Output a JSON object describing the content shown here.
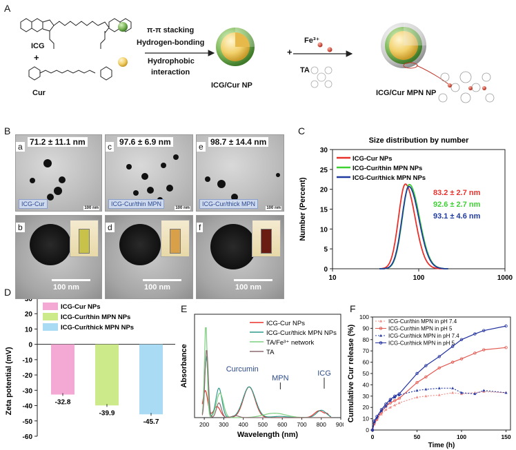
{
  "panels": {
    "A": "A",
    "B": "B",
    "C": "C",
    "D": "D",
    "E": "E",
    "F": "F"
  },
  "scheme": {
    "icg_label": "ICG",
    "cur_label": "Cur",
    "plus": "+",
    "interaction_lines": [
      "π-π stacking",
      "Hydrogen-bonding",
      "Hydrophobic",
      "interaction"
    ],
    "icg_cur_np": "ICG/Cur NP",
    "fe_label": "Fe³⁺",
    "ta_label": "TA",
    "mpn_np": "ICG/Cur MPN NP",
    "colors": {
      "icg_sphere": "#7fb85a",
      "cur_sphere": "#f2d06b",
      "fe": "#c0392b"
    }
  },
  "tem": {
    "top": [
      {
        "letter": "a",
        "size": "71.2 ± 11.1 nm",
        "tag": "ICG-Cur",
        "scale": "100 nm"
      },
      {
        "letter": "c",
        "size": "97.6 ± 6.9 nm",
        "tag": "ICG-Cur/thin MPN",
        "scale": "100 nm"
      },
      {
        "letter": "e",
        "size": "98.7 ± 14.4 nm",
        "tag": "ICG-Cur/thick MPN",
        "scale": "100 nm"
      }
    ],
    "bottom": [
      {
        "letter": "b",
        "scale": "100 nm",
        "vial": "#c9c24a"
      },
      {
        "letter": "d",
        "scale": "100 nm",
        "vial": "#d8a048"
      },
      {
        "letter": "f",
        "scale": "100 nm",
        "vial": "#6a1c12"
      }
    ]
  },
  "chart_data": [
    {
      "id": "C",
      "type": "line",
      "title": "Size distribution by number",
      "xlabel": "Size (d.nm)",
      "ylabel": "Number (Percent)",
      "xscale": "log",
      "xlim": [
        10,
        1000
      ],
      "ylim": [
        0,
        30
      ],
      "xticks": [
        10,
        100,
        1000
      ],
      "yticks": [
        0,
        5,
        10,
        15,
        20,
        25,
        30
      ],
      "series": [
        {
          "name": "ICG-Cur NPs",
          "color": "#e8302a",
          "peak": 70,
          "peak_value": 21.3,
          "width": 0.145,
          "annotation": "83.2 ± 2.7 nm"
        },
        {
          "name": "ICG-Cur/thin MPN NPs",
          "color": "#3dd133",
          "peak": 78,
          "peak_value": 21.2,
          "width": 0.15,
          "annotation": "92.6 ± 2.7 nm"
        },
        {
          "name": "ICG-Cur/thick MPN NPs",
          "color": "#1f3a9e",
          "peak": 77,
          "peak_value": 20.7,
          "width": 0.15,
          "annotation": "93.1 ± 4.6 nm"
        }
      ]
    },
    {
      "id": "D",
      "type": "bar",
      "xlabel": "",
      "ylabel": "Zeta potential (mV)",
      "ylim": [
        -60,
        30
      ],
      "yticks": [
        30,
        20,
        10,
        0,
        -10,
        -20,
        -30,
        -40,
        -50,
        -60
      ],
      "categories": [
        "ICG-Cur NPs",
        "ICG-Cur/thin MPN NPs",
        "ICG-Cur/thick MPN NPs"
      ],
      "values": [
        -32.8,
        -39.9,
        -45.7
      ],
      "labels": [
        "-32.8",
        "-39.9",
        "-45.7"
      ],
      "colors": [
        "#f4a9d4",
        "#cdea8a",
        "#a9dcf4"
      ]
    },
    {
      "id": "E",
      "type": "line",
      "xlabel": "Wavelength (nm)",
      "ylabel": "Absorbance",
      "xlim": [
        150,
        900
      ],
      "xticks": [
        200,
        300,
        400,
        500,
        600,
        700,
        800,
        900
      ],
      "series": [
        {
          "name": "ICG-Cur NPs",
          "color": "#e8302a"
        },
        {
          "name": "ICG-Cur/thick MPN NPs",
          "color": "#2f9a8a"
        },
        {
          "name": "TA/Fe³⁺ network",
          "color": "#7ccf7e"
        },
        {
          "name": "TA",
          "color": "#8a6a70"
        }
      ],
      "annotations": [
        "Curcumin",
        "MPN",
        "ICG"
      ]
    },
    {
      "id": "F",
      "type": "line",
      "xlabel": "Time (h)",
      "ylabel": "Cumulative Cur release (%)",
      "xlim": [
        0,
        155
      ],
      "ylim": [
        0,
        100
      ],
      "xticks": [
        0,
        50,
        100,
        150
      ],
      "yticks": [
        0,
        10,
        20,
        30,
        40,
        50,
        60,
        70,
        80,
        90,
        100
      ],
      "series": [
        {
          "name": "ICG-Cur/thin MPN in pH 7.4",
          "color": "#f0908a",
          "dash": true,
          "marker": "triangle",
          "x": [
            0,
            2,
            5,
            10,
            15,
            20,
            25,
            30,
            50,
            60,
            75,
            90,
            100,
            115,
            125,
            150
          ],
          "y": [
            0,
            5,
            9,
            14,
            18,
            20,
            22,
            24,
            29,
            30,
            31,
            33,
            32,
            33,
            34,
            33
          ]
        },
        {
          "name": "ICG-Cur/thin MPN in pH 5",
          "color": "#e35a52",
          "dash": false,
          "marker": "circle",
          "x": [
            0,
            2,
            5,
            10,
            15,
            20,
            25,
            30,
            50,
            60,
            75,
            90,
            100,
            115,
            125,
            150
          ],
          "y": [
            0,
            6,
            10,
            16,
            21,
            24,
            26,
            28,
            42,
            47,
            55,
            60,
            63,
            68,
            71,
            73
          ]
        },
        {
          "name": "ICG-Cur/thick MPN in pH 7.4",
          "color": "#2a3fa6",
          "dash": true,
          "marker": "triangle",
          "x": [
            0,
            2,
            5,
            10,
            15,
            20,
            25,
            30,
            50,
            60,
            75,
            90,
            100,
            115,
            125,
            150
          ],
          "y": [
            0,
            7,
            11,
            17,
            21,
            26,
            29,
            31,
            35,
            36,
            37,
            37,
            33,
            32,
            35,
            33
          ]
        },
        {
          "name": "ICG-Cur/thick MPN in pH 5",
          "color": "#1f2f9e",
          "dash": false,
          "marker": "circle",
          "x": [
            0,
            2,
            5,
            10,
            15,
            20,
            25,
            30,
            50,
            60,
            75,
            90,
            100,
            115,
            125,
            150
          ],
          "y": [
            0,
            8,
            12,
            18,
            23,
            27,
            30,
            32,
            50,
            57,
            65,
            74,
            80,
            85,
            88,
            92
          ]
        }
      ]
    }
  ]
}
